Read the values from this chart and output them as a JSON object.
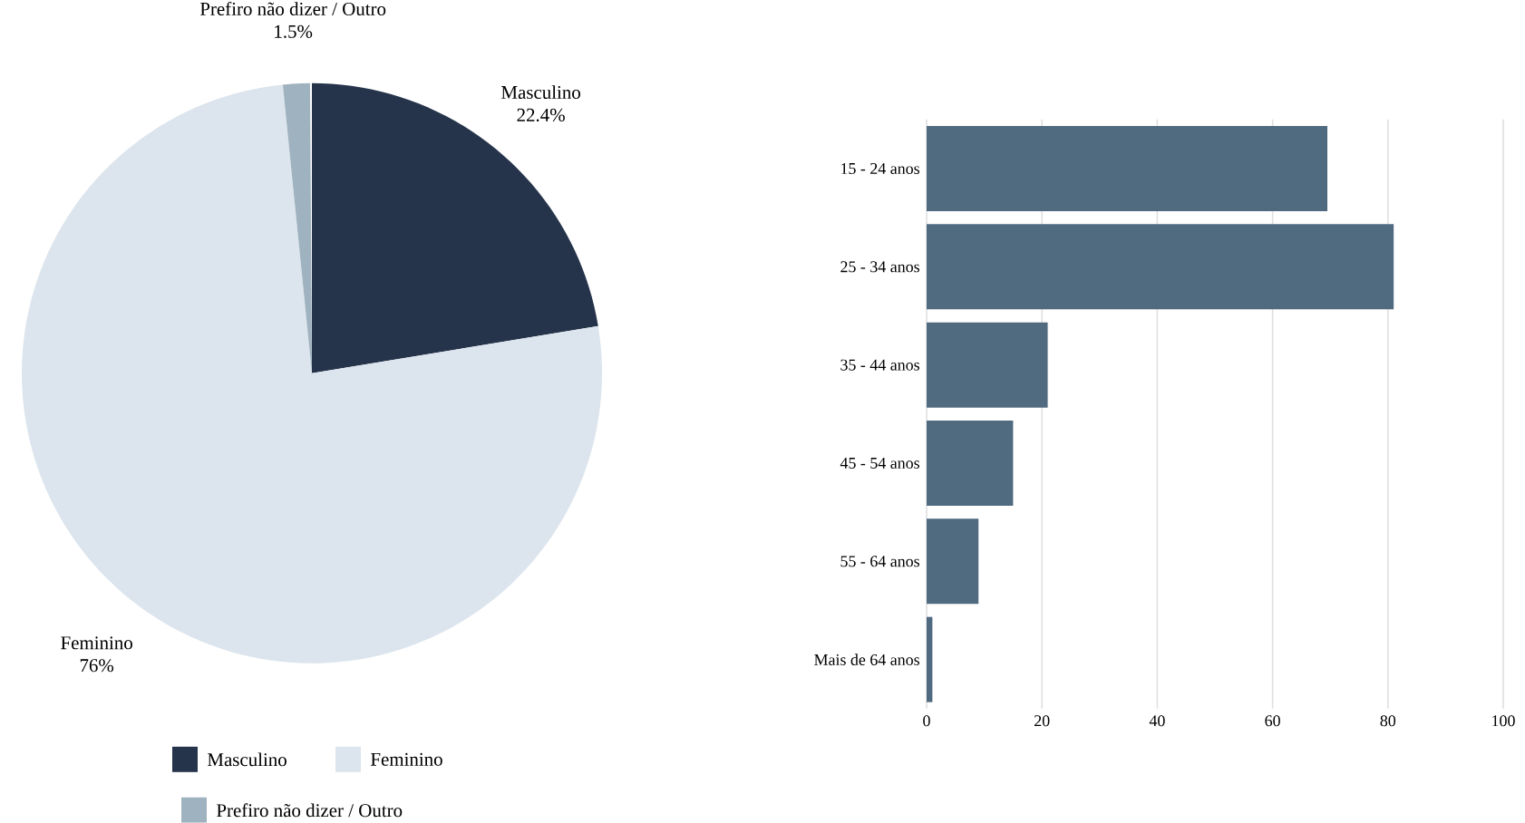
{
  "chart_data": [
    {
      "type": "pie",
      "categories": [
        "Masculino",
        "Feminino",
        "Prefiro não dizer / Outro"
      ],
      "values": [
        22.4,
        76,
        1.5
      ],
      "colors": [
        "#26344b",
        "#dce5ed",
        "#9fb2bf"
      ],
      "value_labels": [
        "22.4%",
        "76%",
        "1.5%"
      ],
      "legend": "bottom"
    },
    {
      "type": "bar",
      "orientation": "horizontal",
      "categories": [
        "15 - 24 anos",
        "25 - 34 anos",
        "35 - 44 anos",
        "45 - 54 anos",
        "55 - 64 anos",
        "Mais de 64 anos"
      ],
      "values": [
        69.5,
        81,
        21,
        15,
        9,
        1
      ],
      "color": "#506a80",
      "xlim": [
        0,
        100
      ],
      "xticks": [
        0,
        20,
        40,
        60,
        80,
        100
      ],
      "grid": "x"
    }
  ]
}
